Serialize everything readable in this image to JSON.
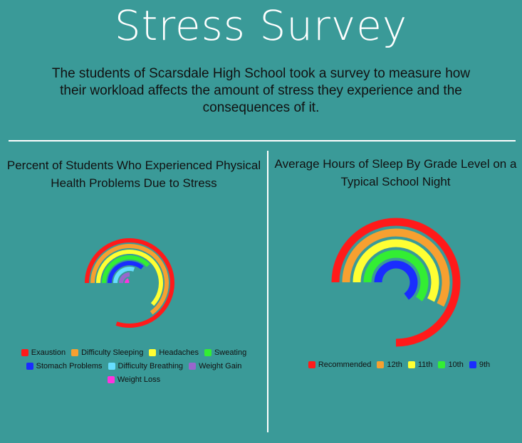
{
  "title": "Stress Survey",
  "intro": "The students of Scarsdale High School took a survey to measure how their workload affects the amount of stress they experience and the consequences of it.",
  "chart_data": [
    {
      "type": "radial-bar",
      "title": "Percent of Students Who Experienced Physical Health Problems Due to Stress",
      "legend_position": "bottom",
      "series": [
        {
          "name": "Exaustion",
          "color": "#ff1a1a",
          "value": 80
        },
        {
          "name": "Difficulty Sleeping",
          "color": "#f7a030",
          "value": 65
        },
        {
          "name": "Headaches",
          "color": "#ffff33",
          "value": 62
        },
        {
          "name": "Sweating",
          "color": "#33ee33",
          "value": 38
        },
        {
          "name": "Stomach Problems",
          "color": "#1a2cff",
          "value": 36
        },
        {
          "name": "Difficulty Breathing",
          "color": "#66ddff",
          "value": 30
        },
        {
          "name": "Weight Gain",
          "color": "#9966cc",
          "value": 25
        },
        {
          "name": "Weight Loss",
          "color": "#ff33dd",
          "value": 20
        }
      ]
    },
    {
      "type": "radial-bar",
      "title": "Average Hours of Sleep By Grade Level on a Typical School Night",
      "legend_position": "bottom",
      "series": [
        {
          "name": "Recommended",
          "color": "#ff1a1a",
          "value": 9
        },
        {
          "name": "12th",
          "color": "#f7a030",
          "value": 6.9
        },
        {
          "name": "11th",
          "color": "#ffff33",
          "value": 6.9
        },
        {
          "name": "10th",
          "color": "#33ee33",
          "value": 7.2
        },
        {
          "name": "9th",
          "color": "#1a2cff",
          "value": 7.8
        }
      ]
    }
  ]
}
